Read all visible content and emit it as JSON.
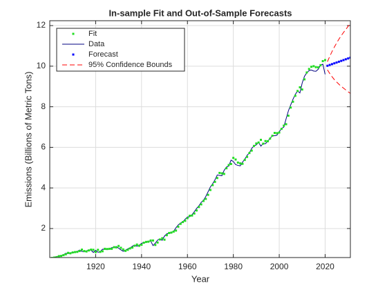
{
  "chart_data": {
    "type": "line",
    "title": "In-sample Fit and Out-of-Sample Forecasts",
    "x_label": "Year",
    "y_label": "Emissions (Billions of Metric Tons)",
    "xlim": [
      1900,
      2031
    ],
    "ylim": [
      0.57,
      12.24
    ],
    "xticks": [
      1920,
      1940,
      1960,
      1980,
      2000,
      2020
    ],
    "yticks": [
      2,
      4,
      6,
      8,
      10,
      12
    ],
    "grid": true,
    "legend": "top-left",
    "series": [
      {
        "name": "Fit",
        "color": "#22dd22",
        "style": "markers",
        "x": [
          1900,
          1901,
          1902,
          1903,
          1904,
          1905,
          1906,
          1907,
          1908,
          1909,
          1910,
          1911,
          1912,
          1913,
          1914,
          1915,
          1916,
          1917,
          1918,
          1919,
          1920,
          1921,
          1922,
          1923,
          1924,
          1925,
          1926,
          1927,
          1928,
          1929,
          1930,
          1931,
          1932,
          1933,
          1934,
          1935,
          1936,
          1937,
          1938,
          1939,
          1940,
          1941,
          1942,
          1943,
          1944,
          1945,
          1946,
          1947,
          1948,
          1949,
          1950,
          1951,
          1952,
          1953,
          1954,
          1955,
          1956,
          1957,
          1958,
          1959,
          1960,
          1961,
          1962,
          1963,
          1964,
          1965,
          1966,
          1967,
          1968,
          1969,
          1970,
          1971,
          1972,
          1973,
          1974,
          1975,
          1976,
          1977,
          1978,
          1979,
          1980,
          1981,
          1982,
          1983,
          1984,
          1985,
          1986,
          1987,
          1988,
          1989,
          1990,
          1991,
          1992,
          1993,
          1994,
          1995,
          1996,
          1997,
          1998,
          1999,
          2000,
          2001,
          2002,
          2003,
          2004,
          2005,
          2006,
          2007,
          2008,
          2009,
          2010,
          2011,
          2012,
          2013,
          2014,
          2015,
          2016,
          2017,
          2018,
          2019,
          2020
        ],
        "values": [
          0.52,
          0.55,
          0.57,
          0.59,
          0.64,
          0.65,
          0.69,
          0.73,
          0.8,
          0.78,
          0.82,
          0.84,
          0.85,
          0.89,
          0.96,
          0.89,
          0.87,
          0.92,
          0.96,
          0.95,
          0.84,
          0.95,
          0.85,
          0.88,
          1.0,
          0.99,
          1.0,
          1.0,
          1.08,
          1.07,
          1.14,
          1.05,
          0.97,
          0.9,
          0.95,
          1.02,
          1.06,
          1.15,
          1.21,
          1.15,
          1.2,
          1.3,
          1.34,
          1.35,
          1.41,
          1.41,
          1.19,
          1.31,
          1.46,
          1.52,
          1.45,
          1.67,
          1.78,
          1.8,
          1.85,
          1.9,
          2.09,
          2.23,
          2.32,
          2.38,
          2.51,
          2.63,
          2.64,
          2.74,
          2.89,
          3.06,
          3.19,
          3.36,
          3.46,
          3.66,
          3.9,
          4.14,
          4.3,
          4.49,
          4.74,
          4.72,
          4.69,
          4.97,
          5.13,
          5.18,
          5.48,
          5.4,
          5.25,
          5.21,
          5.19,
          5.38,
          5.53,
          5.72,
          5.84,
          6.07,
          6.19,
          6.24,
          6.37,
          6.18,
          6.31,
          6.3,
          6.43,
          6.57,
          6.71,
          6.7,
          6.73,
          6.91,
          7.07,
          7.14,
          7.56,
          7.96,
          8.25,
          8.54,
          8.78,
          8.96,
          8.85,
          9.35,
          9.69,
          9.86,
          9.97,
          10.0,
          9.95,
          9.94,
          10.05,
          10.25,
          10.3
        ]
      },
      {
        "name": "Data",
        "color": "#000080",
        "style": "line",
        "x": [
          1900,
          1901,
          1902,
          1903,
          1904,
          1905,
          1906,
          1907,
          1908,
          1909,
          1910,
          1911,
          1912,
          1913,
          1914,
          1915,
          1916,
          1917,
          1918,
          1919,
          1920,
          1921,
          1922,
          1923,
          1924,
          1925,
          1926,
          1927,
          1928,
          1929,
          1930,
          1931,
          1932,
          1933,
          1934,
          1935,
          1936,
          1937,
          1938,
          1939,
          1940,
          1941,
          1942,
          1943,
          1944,
          1945,
          1946,
          1947,
          1948,
          1949,
          1950,
          1951,
          1952,
          1953,
          1954,
          1955,
          1956,
          1957,
          1958,
          1959,
          1960,
          1961,
          1962,
          1963,
          1964,
          1965,
          1966,
          1967,
          1968,
          1969,
          1970,
          1971,
          1972,
          1973,
          1974,
          1975,
          1976,
          1977,
          1978,
          1979,
          1980,
          1981,
          1982,
          1983,
          1984,
          1985,
          1986,
          1987,
          1988,
          1989,
          1990,
          1991,
          1992,
          1993,
          1994,
          1995,
          1996,
          1997,
          1998,
          1999,
          2000,
          2001,
          2002,
          2003,
          2004,
          2005,
          2006,
          2007,
          2008,
          2009,
          2010,
          2011,
          2012,
          2013,
          2014,
          2015,
          2016,
          2017,
          2018,
          2019,
          2020
        ],
        "values": [
          0.53,
          0.55,
          0.57,
          0.62,
          0.63,
          0.67,
          0.71,
          0.78,
          0.76,
          0.8,
          0.82,
          0.83,
          0.87,
          0.94,
          0.87,
          0.85,
          0.9,
          0.94,
          0.93,
          0.82,
          0.93,
          0.83,
          0.86,
          0.98,
          0.97,
          0.98,
          0.98,
          1.06,
          1.05,
          1.12,
          1.03,
          0.95,
          0.88,
          0.93,
          1.0,
          1.04,
          1.13,
          1.19,
          1.13,
          1.18,
          1.27,
          1.31,
          1.32,
          1.38,
          1.38,
          1.16,
          1.28,
          1.43,
          1.49,
          1.42,
          1.63,
          1.74,
          1.76,
          1.81,
          1.86,
          2.04,
          2.18,
          2.27,
          2.33,
          2.46,
          2.57,
          2.58,
          2.68,
          2.83,
          2.99,
          3.12,
          3.29,
          3.39,
          3.58,
          3.81,
          4.05,
          4.21,
          4.4,
          4.64,
          4.62,
          4.6,
          4.87,
          5.03,
          5.08,
          5.37,
          5.3,
          5.15,
          5.11,
          5.09,
          5.27,
          5.42,
          5.61,
          5.73,
          5.95,
          6.07,
          6.12,
          6.25,
          6.06,
          6.19,
          6.18,
          6.3,
          6.44,
          6.58,
          6.57,
          6.6,
          6.77,
          6.93,
          7.0,
          7.41,
          7.8,
          8.09,
          8.37,
          8.61,
          8.78,
          8.68,
          9.17,
          9.5,
          9.67,
          9.78,
          9.81,
          9.76,
          9.75,
          9.85,
          10.05,
          10.1,
          9.6
        ]
      },
      {
        "name": "Forecast",
        "color": "#0000ff",
        "style": "markers",
        "x": [
          2021,
          2022,
          2023,
          2024,
          2025,
          2026,
          2027,
          2028,
          2029,
          2030,
          2031
        ],
        "values": [
          10.02,
          10.06,
          10.1,
          10.14,
          10.18,
          10.22,
          10.26,
          10.3,
          10.34,
          10.38,
          10.42
        ]
      },
      {
        "name": "95% Confidence Bounds",
        "color": "#ff0000",
        "style": "dashed-band",
        "x": [
          2021,
          2022,
          2023,
          2024,
          2025,
          2026,
          2027,
          2028,
          2029,
          2030,
          2031
        ],
        "upper": [
          10.22,
          10.48,
          10.72,
          10.94,
          11.14,
          11.33,
          11.5,
          11.66,
          11.81,
          11.96,
          12.1
        ],
        "lower": [
          9.82,
          9.64,
          9.48,
          9.34,
          9.22,
          9.11,
          9.01,
          8.92,
          8.83,
          8.74,
          8.66
        ]
      }
    ]
  }
}
